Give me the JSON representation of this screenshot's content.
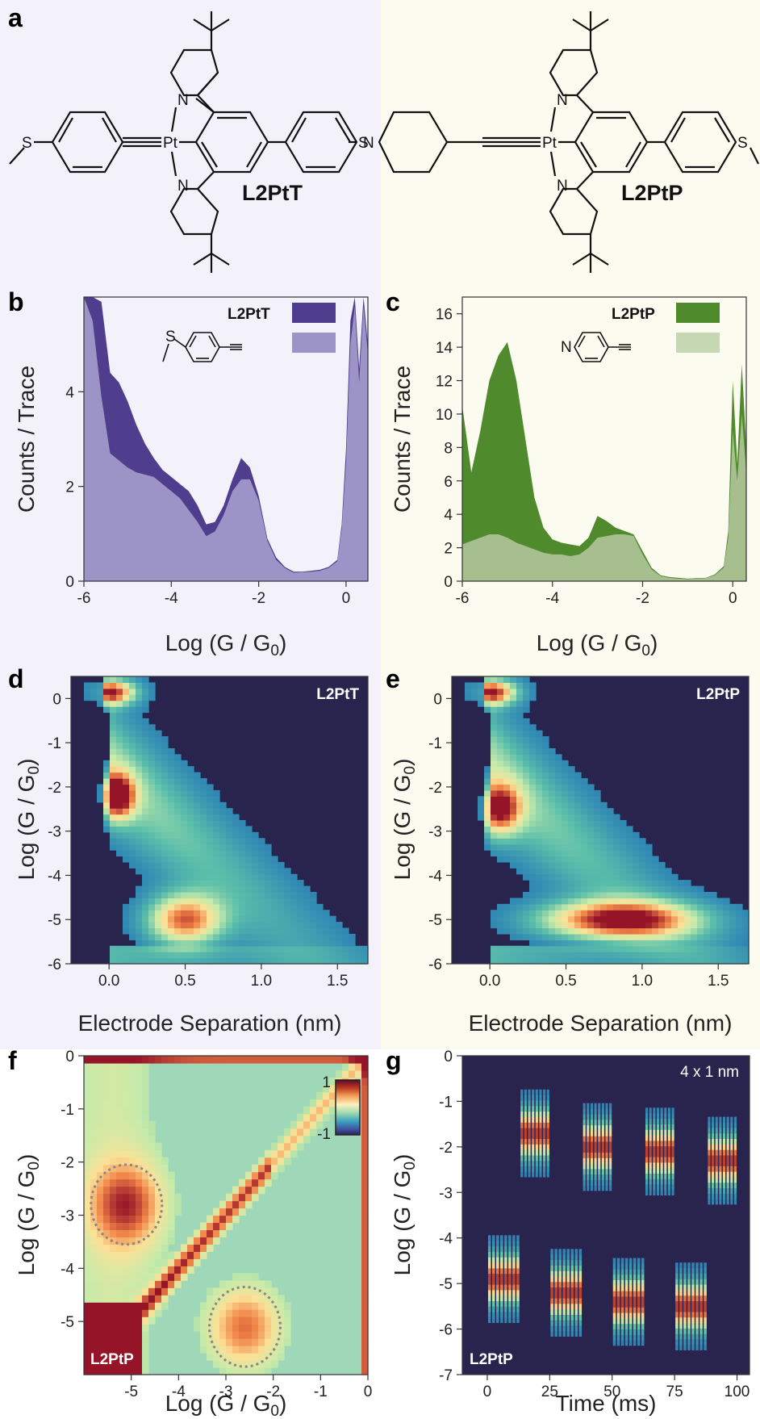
{
  "panel_letters": [
    "a",
    "b",
    "c",
    "d",
    "e",
    "f",
    "g"
  ],
  "colors": {
    "T_dark": "#4f3d8e",
    "T_light": "#9c93c6",
    "P_dark": "#4f8a2c",
    "P_light": "#a7bf8f",
    "panel_bg_left": "#f3f1fa",
    "panel_bg_right": "#fbfbef",
    "heatmap_bg": "#28244e"
  },
  "molecules": {
    "left": {
      "name": "L2PtT",
      "atoms": {
        "S1": "S",
        "S2": "S",
        "N1": "N",
        "N2": "N",
        "Pt": "Pt"
      }
    },
    "right": {
      "name": "L2PtP",
      "atoms": {
        "S1": "S",
        "N0": "N",
        "N1": "N",
        "N2": "N",
        "Pt": "Pt"
      }
    },
    "legend_T": {
      "atom": "S"
    },
    "legend_P": {
      "atom": "N"
    }
  },
  "labels": {
    "counts_trace": "Counts / Trace",
    "log_g": "Log (G / G",
    "sub0": "0",
    "log_g_close": ")",
    "electrode_sep": "Electrode Separation (nm)",
    "time_ms": "Time (ms)",
    "four_by_one": "4 x 1 nm"
  },
  "chart_data": [
    {
      "panel": "b",
      "type": "area",
      "legend": [
        "L2PtT"
      ],
      "xlabel": "Log (G / G0)",
      "ylabel": "Counts / Trace",
      "xlim": [
        -6,
        0.5
      ],
      "ylim": [
        0,
        6
      ],
      "xticks": [
        "-6",
        "-4",
        "-2",
        "0"
      ],
      "yticks": [
        "0",
        "2",
        "4"
      ],
      "series": [
        {
          "name": "L2PtT",
          "x": [
            -6,
            -5.8,
            -5.6,
            -5.4,
            -5.2,
            -5.0,
            -4.8,
            -4.6,
            -4.4,
            -4.2,
            -4.0,
            -3.8,
            -3.6,
            -3.4,
            -3.2,
            -3.0,
            -2.8,
            -2.6,
            -2.4,
            -2.2,
            -2.0,
            -1.8,
            -1.6,
            -1.4,
            -1.2,
            -1.0,
            -0.8,
            -0.6,
            -0.4,
            -0.2,
            -0.1,
            0,
            0.1,
            0.2,
            0.3,
            0.4,
            0.5
          ],
          "y": [
            6,
            6,
            5.9,
            4.4,
            4.2,
            3.8,
            3.3,
            2.9,
            2.6,
            2.35,
            2.2,
            2.05,
            1.9,
            1.6,
            1.2,
            1.25,
            1.6,
            2.15,
            2.6,
            2.4,
            1.8,
            0.9,
            0.5,
            0.3,
            0.2,
            0.2,
            0.22,
            0.24,
            0.3,
            0.45,
            1.2,
            2.8,
            5.5,
            6,
            4.5,
            6,
            5
          ]
        },
        {
          "name": "",
          "x": [
            -6,
            -5.8,
            -5.6,
            -5.4,
            -5.2,
            -5.0,
            -4.8,
            -4.6,
            -4.4,
            -4.2,
            -4.0,
            -3.8,
            -3.6,
            -3.4,
            -3.2,
            -3.0,
            -2.8,
            -2.6,
            -2.4,
            -2.2,
            -2.0,
            -1.8,
            -1.6,
            -1.4,
            -1.2,
            -1.0,
            -0.8,
            -0.6,
            -0.4,
            -0.2,
            -0.1,
            0,
            0.1,
            0.2,
            0.3,
            0.4,
            0.5
          ],
          "y": [
            6,
            5.5,
            3.9,
            2.7,
            2.55,
            2.4,
            2.3,
            2.25,
            2.2,
            2.05,
            1.9,
            1.75,
            1.5,
            1.25,
            0.95,
            1.05,
            1.4,
            1.9,
            2.15,
            2.15,
            1.7,
            0.85,
            0.45,
            0.28,
            0.18,
            0.19,
            0.2,
            0.22,
            0.28,
            0.42,
            1.1,
            2.5,
            5,
            5.8,
            4.2,
            5.8,
            4.8
          ]
        }
      ]
    },
    {
      "panel": "c",
      "type": "area",
      "legend": [
        "L2PtP"
      ],
      "xlabel": "Log (G / G0)",
      "ylabel": "Counts / Trace",
      "xlim": [
        -6,
        0.3
      ],
      "ylim": [
        0,
        17
      ],
      "xticks": [
        "-6",
        "-4",
        "-2",
        "0"
      ],
      "yticks": [
        "0",
        "2",
        "4",
        "6",
        "8",
        "10",
        "12",
        "14",
        "16"
      ],
      "series": [
        {
          "name": "L2PtP",
          "x": [
            -6,
            -5.8,
            -5.6,
            -5.4,
            -5.2,
            -5.0,
            -4.8,
            -4.6,
            -4.4,
            -4.2,
            -4.0,
            -3.8,
            -3.6,
            -3.4,
            -3.2,
            -3.0,
            -2.8,
            -2.6,
            -2.4,
            -2.2,
            -2.0,
            -1.8,
            -1.6,
            -1.4,
            -1.2,
            -1.0,
            -0.8,
            -0.6,
            -0.4,
            -0.2,
            -0.1,
            0,
            0.1,
            0.2,
            0.3
          ],
          "y": [
            10.5,
            6.5,
            9,
            12,
            13.5,
            14.3,
            12,
            8.5,
            5,
            3.2,
            2.5,
            2.3,
            2.2,
            2.1,
            2.6,
            3.9,
            3.6,
            3.2,
            3,
            2.8,
            1.8,
            0.8,
            0.35,
            0.25,
            0.2,
            0.15,
            0.18,
            0.2,
            0.4,
            0.9,
            3,
            12,
            7,
            13,
            8
          ]
        },
        {
          "name": "",
          "x": [
            -6,
            -5.8,
            -5.6,
            -5.4,
            -5.2,
            -5.0,
            -4.8,
            -4.6,
            -4.4,
            -4.2,
            -4.0,
            -3.8,
            -3.6,
            -3.4,
            -3.2,
            -3.0,
            -2.8,
            -2.6,
            -2.4,
            -2.2,
            -2.0,
            -1.8,
            -1.6,
            -1.4,
            -1.2,
            -1.0,
            -0.8,
            -0.6,
            -0.4,
            -0.2,
            -0.1,
            0,
            0.1,
            0.2,
            0.3
          ],
          "y": [
            2.2,
            2.4,
            2.6,
            2.8,
            2.8,
            2.6,
            2.3,
            2.1,
            1.9,
            1.7,
            1.6,
            1.6,
            1.5,
            1.6,
            2.0,
            2.6,
            2.7,
            2.8,
            2.8,
            2.7,
            1.6,
            0.7,
            0.3,
            0.2,
            0.15,
            0.12,
            0.15,
            0.18,
            0.35,
            0.8,
            2.6,
            9,
            6,
            10,
            6.5
          ]
        }
      ]
    },
    {
      "panel": "d",
      "type": "heatmap",
      "label": "L2PtT",
      "xlabel": "Electrode Separation (nm)",
      "ylabel": "Log (G / G0)",
      "xlim": [
        -0.25,
        1.7
      ],
      "ylim": [
        -6,
        0.5
      ],
      "xticks": [
        "0.0",
        "0.5",
        "1.0",
        "1.5"
      ],
      "yticks": [
        "0",
        "-1",
        "-2",
        "-3",
        "-4",
        "-5",
        "-6"
      ],
      "features": [
        {
          "x": 0.05,
          "y": -2.2,
          "sx": 0.08,
          "sy": 0.35,
          "amp": 1.0
        },
        {
          "x": 0.5,
          "y": -5.0,
          "sx": 0.17,
          "sy": 0.4,
          "amp": 0.85
        },
        {
          "x": 0.0,
          "y": 0.15,
          "sx": 0.12,
          "sy": 0.2,
          "amp": 1.0
        }
      ]
    },
    {
      "panel": "e",
      "type": "heatmap",
      "label": "L2PtP",
      "xlabel": "Electrode Separation (nm)",
      "ylabel": "Log (G / G0)",
      "xlim": [
        -0.25,
        1.7
      ],
      "ylim": [
        -6,
        0.5
      ],
      "xticks": [
        "0.0",
        "0.5",
        "1.0",
        "1.5"
      ],
      "yticks": [
        "0",
        "-1",
        "-2",
        "-3",
        "-4",
        "-5",
        "-6"
      ],
      "features": [
        {
          "x": 0.06,
          "y": -2.5,
          "sx": 0.1,
          "sy": 0.4,
          "amp": 0.85
        },
        {
          "x": 0.85,
          "y": -5.0,
          "sx": 0.35,
          "sy": 0.3,
          "amp": 1.0
        },
        {
          "x": 0.0,
          "y": 0.15,
          "sx": 0.12,
          "sy": 0.2,
          "amp": 1.0
        }
      ]
    },
    {
      "panel": "f",
      "type": "heatmap",
      "label": "L2PtP",
      "xlabel": "Log (G / G0)",
      "ylabel": "Log (G / G0)",
      "xlim": [
        -6,
        0
      ],
      "ylim": [
        -6,
        0
      ],
      "colorbar": {
        "max": "1",
        "min": "-1"
      },
      "xticks": [
        "-5",
        "-4",
        "-3",
        "-2",
        "-1",
        "0"
      ],
      "yticks": [
        "0",
        "-1",
        "-2",
        "-3",
        "-4",
        "-5"
      ],
      "highlights": [
        {
          "x": -5.1,
          "y": -2.8,
          "r": 0.75
        },
        {
          "x": -2.6,
          "y": -5.1,
          "r": 0.75
        }
      ]
    },
    {
      "panel": "g",
      "type": "heatmap",
      "label": "L2PtP",
      "annotation": "4 x 1 nm",
      "xlabel": "Time (ms)",
      "ylabel": "Log (G / G0)",
      "xlim": [
        -10,
        105
      ],
      "ylim": [
        -7,
        0
      ],
      "xticks": [
        "0",
        "25",
        "50",
        "75",
        "100"
      ],
      "yticks": [
        "0",
        "-1",
        "-2",
        "-3",
        "-4",
        "-5",
        "-6",
        "-7"
      ],
      "segments": [
        {
          "t0": 0,
          "t1": 13,
          "level": -4.9
        },
        {
          "t0": 13,
          "t1": 25,
          "level": -1.7
        },
        {
          "t0": 25,
          "t1": 38,
          "level": -5.2
        },
        {
          "t0": 38,
          "t1": 50,
          "level": -2.0
        },
        {
          "t0": 50,
          "t1": 63,
          "level": -5.4
        },
        {
          "t0": 63,
          "t1": 75,
          "level": -2.1
        },
        {
          "t0": 75,
          "t1": 88,
          "level": -5.5
        },
        {
          "t0": 88,
          "t1": 100,
          "level": -2.3
        }
      ]
    }
  ]
}
